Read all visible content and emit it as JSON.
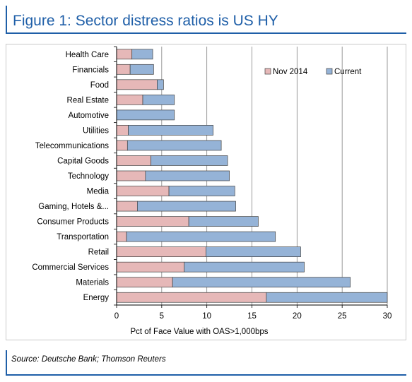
{
  "figure_title": "Figure 1: Sector distress ratios is US HY",
  "source_note": "Source: Deutsche Bank; Thomson Reuters",
  "colors": {
    "nov2014": "#e6b8b8",
    "current": "#95b3d7",
    "accent": "#1f5fa8",
    "bar_stroke": "#404040",
    "grid": "#808080"
  },
  "chart_data": {
    "type": "bar",
    "orientation": "horizontal",
    "stacked": true,
    "title": "",
    "xlabel": "Pct of Face Value with OAS>1,000bps",
    "ylabel": "",
    "xlim": [
      0,
      30
    ],
    "xticks": [
      0,
      5,
      10,
      15,
      20,
      25,
      30
    ],
    "grid": "vertical",
    "legend_position": "top-right",
    "categories": [
      "Health Care",
      "Financials",
      "Food",
      "Real Estate",
      "Automotive",
      "Utilities",
      "Telecommunications",
      "Capital Goods",
      "Technology",
      "Media",
      "Gaming, Hotels &...",
      "Consumer Products",
      "Transportation",
      "Retail",
      "Commercial Services",
      "Materials",
      "Energy"
    ],
    "series": [
      {
        "name": "Nov 2014",
        "values": [
          1.7,
          1.5,
          4.5,
          2.9,
          0,
          1.3,
          1.2,
          3.8,
          3.2,
          5.8,
          2.3,
          8.0,
          1.1,
          9.9,
          7.5,
          6.2,
          16.6
        ]
      },
      {
        "name": "Current",
        "values": [
          2.3,
          2.6,
          0.7,
          3.5,
          6.4,
          9.4,
          10.4,
          8.5,
          9.3,
          7.3,
          10.9,
          7.7,
          16.5,
          10.5,
          13.3,
          19.7,
          13.4
        ]
      }
    ]
  }
}
